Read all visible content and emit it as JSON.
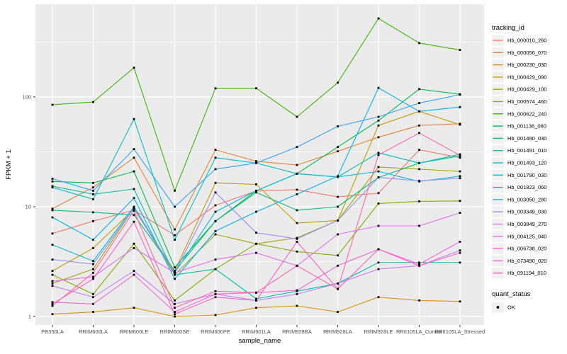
{
  "figure": {
    "background": "#FFFFFF",
    "panel_background": "#EBEBEB",
    "grid_color": "#FFFFFF",
    "tick_color": "#333333",
    "tick_label_color": "#4D4D4D",
    "marker_color": "#000000",
    "legend_key_background": "#F0F0F0"
  },
  "chart_data": {
    "type": "line",
    "xlabel": "sample_name",
    "ylabel": "FPKM + 1",
    "yscale": "log10",
    "ylim": [
      0.85,
      700
    ],
    "grid": true,
    "legend_position": "right",
    "legend_title": "tracking_id",
    "y_ticks": [
      "1",
      "10",
      "100"
    ],
    "y_tick_values": [
      1,
      10,
      100
    ],
    "y_minor_tick_values": [
      3.1623,
      31.623,
      316.23
    ],
    "categories": [
      "PB350LA",
      "RRIM600LA",
      "RRIM600LE",
      "RRIM600SE",
      "RRIM600PE",
      "RRIM901LA",
      "RRIM928BA",
      "RRIM928LA",
      "RRIM928LE",
      "RRII105LA_Control",
      "RRII105LA_Stressed"
    ],
    "series": [
      {
        "name": "Hb_000010_260",
        "color": "#F8766D",
        "values": [
          5.7,
          7.4,
          9.3,
          5.5,
          10.3,
          13.9,
          14.3,
          12.3,
          13.3,
          33,
          28
        ]
      },
      {
        "name": "Hb_000056_070",
        "color": "#EA8331",
        "values": [
          9.6,
          15,
          28,
          6.2,
          33,
          26,
          24,
          32,
          43,
          55,
          57
        ]
      },
      {
        "name": "Hb_000230_030",
        "color": "#D89000",
        "values": [
          1.05,
          1.1,
          1.2,
          1.0,
          1.03,
          1.2,
          1.25,
          1.1,
          1.5,
          1.4,
          1.37
        ]
      },
      {
        "name": "Hb_000429_090",
        "color": "#C49A00",
        "values": [
          2.6,
          4.2,
          9.5,
          2.6,
          16.5,
          16,
          7.1,
          7.5,
          55,
          74,
          56
        ]
      },
      {
        "name": "Hb_000429_100",
        "color": "#A3A500",
        "values": [
          2.0,
          2.7,
          9.8,
          2.4,
          5.6,
          4.6,
          5.2,
          7.5,
          23,
          22,
          21
        ]
      },
      {
        "name": "Hb_000574_460",
        "color": "#7CAE00",
        "values": [
          2.4,
          1.6,
          4.6,
          1.4,
          2.7,
          4.6,
          3.9,
          3.6,
          10.7,
          11.2,
          11.3
        ]
      },
      {
        "name": "Hb_000622_240",
        "color": "#39B600",
        "values": [
          85,
          90,
          185,
          14,
          120,
          120,
          66,
          135,
          520,
          310,
          268
        ]
      },
      {
        "name": "Hb_001136_060",
        "color": "#00BB4E",
        "values": [
          17,
          16.5,
          21,
          2.8,
          7.4,
          14,
          20,
          35,
          61,
          118,
          106
        ]
      },
      {
        "name": "Hb_001490_030",
        "color": "#00BF7D",
        "values": [
          9.3,
          8.9,
          8.4,
          2.6,
          7.4,
          13.5,
          9.3,
          10,
          18.5,
          25,
          30
        ]
      },
      {
        "name": "Hb_001491_010",
        "color": "#00C1A3",
        "values": [
          15.4,
          13,
          14.5,
          2.4,
          2.7,
          1.45,
          1.7,
          2.0,
          3.1,
          3.1,
          3.1
        ]
      },
      {
        "name": "Hb_001493_120",
        "color": "#00BFC4",
        "values": [
          15,
          11.7,
          63,
          5.0,
          28,
          25,
          20,
          18.7,
          31,
          25,
          29
        ]
      },
      {
        "name": "Hb_001790_030",
        "color": "#00BAE0",
        "values": [
          4.5,
          3.2,
          10,
          2.5,
          9,
          14,
          20,
          18.7,
          21,
          17,
          19
        ]
      },
      {
        "name": "Hb_001823_060",
        "color": "#00B0F6",
        "values": [
          8,
          5,
          12,
          2.2,
          6,
          9,
          13,
          19,
          121,
          74,
          81
        ]
      },
      {
        "name": "Hb_003050_280",
        "color": "#35A2FF",
        "values": [
          18,
          14,
          33.5,
          10,
          22,
          25,
          35,
          54,
          66,
          88,
          105
        ]
      },
      {
        "name": "Hb_003349_030",
        "color": "#9590FF",
        "values": [
          3.3,
          3.0,
          9.7,
          2.5,
          13.5,
          5.8,
          5.1,
          7.5,
          18.5,
          17.2,
          18.2
        ]
      },
      {
        "name": "Hb_003849_270",
        "color": "#C77CFF",
        "values": [
          1.9,
          1.5,
          2.6,
          1.3,
          1.6,
          1.4,
          1.6,
          2.0,
          2.7,
          2.9,
          4.0
        ]
      },
      {
        "name": "Hb_004125_040",
        "color": "#E76BF3",
        "values": [
          2.1,
          2.3,
          4.2,
          2.5,
          3.3,
          3.8,
          2.9,
          5.6,
          6.7,
          6.7,
          8.8
        ]
      },
      {
        "name": "Hb_006738_020",
        "color": "#FA62DB",
        "values": [
          1.35,
          1.3,
          2.4,
          1.1,
          1.6,
          1.65,
          1.73,
          2.9,
          4.1,
          3.0,
          4.8
        ]
      },
      {
        "name": "Hb_073490_020",
        "color": "#FF61C3",
        "values": [
          1.3,
          2.2,
          7.3,
          1.05,
          1.5,
          1.4,
          4.8,
          1.78,
          4.1,
          2.9,
          3.8
        ]
      },
      {
        "name": "Hb_091194_010",
        "color": "#FF67A4",
        "values": [
          1.25,
          2.5,
          9.2,
          1.2,
          1.7,
          1.65,
          2.9,
          1.78,
          29.6,
          47,
          29.4
        ]
      }
    ],
    "legend2": {
      "title": "quant_status",
      "items": [
        {
          "label": "OK",
          "marker": "black-square"
        }
      ]
    }
  }
}
